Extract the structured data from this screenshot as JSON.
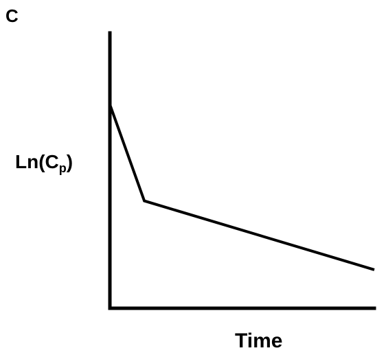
{
  "panel_label": "C",
  "chart_data": {
    "type": "line",
    "title": "",
    "xlabel": "Time",
    "ylabel_main": "Ln(C",
    "ylabel_sub": "p",
    "ylabel_close": ")",
    "grid": false,
    "legend": "none",
    "xlim": [
      0,
      10
    ],
    "ylim": [
      0,
      10
    ],
    "series": [
      {
        "x": [
          0,
          1.3,
          10
        ],
        "y": [
          7.4,
          3.9,
          1.4
        ]
      }
    ]
  }
}
